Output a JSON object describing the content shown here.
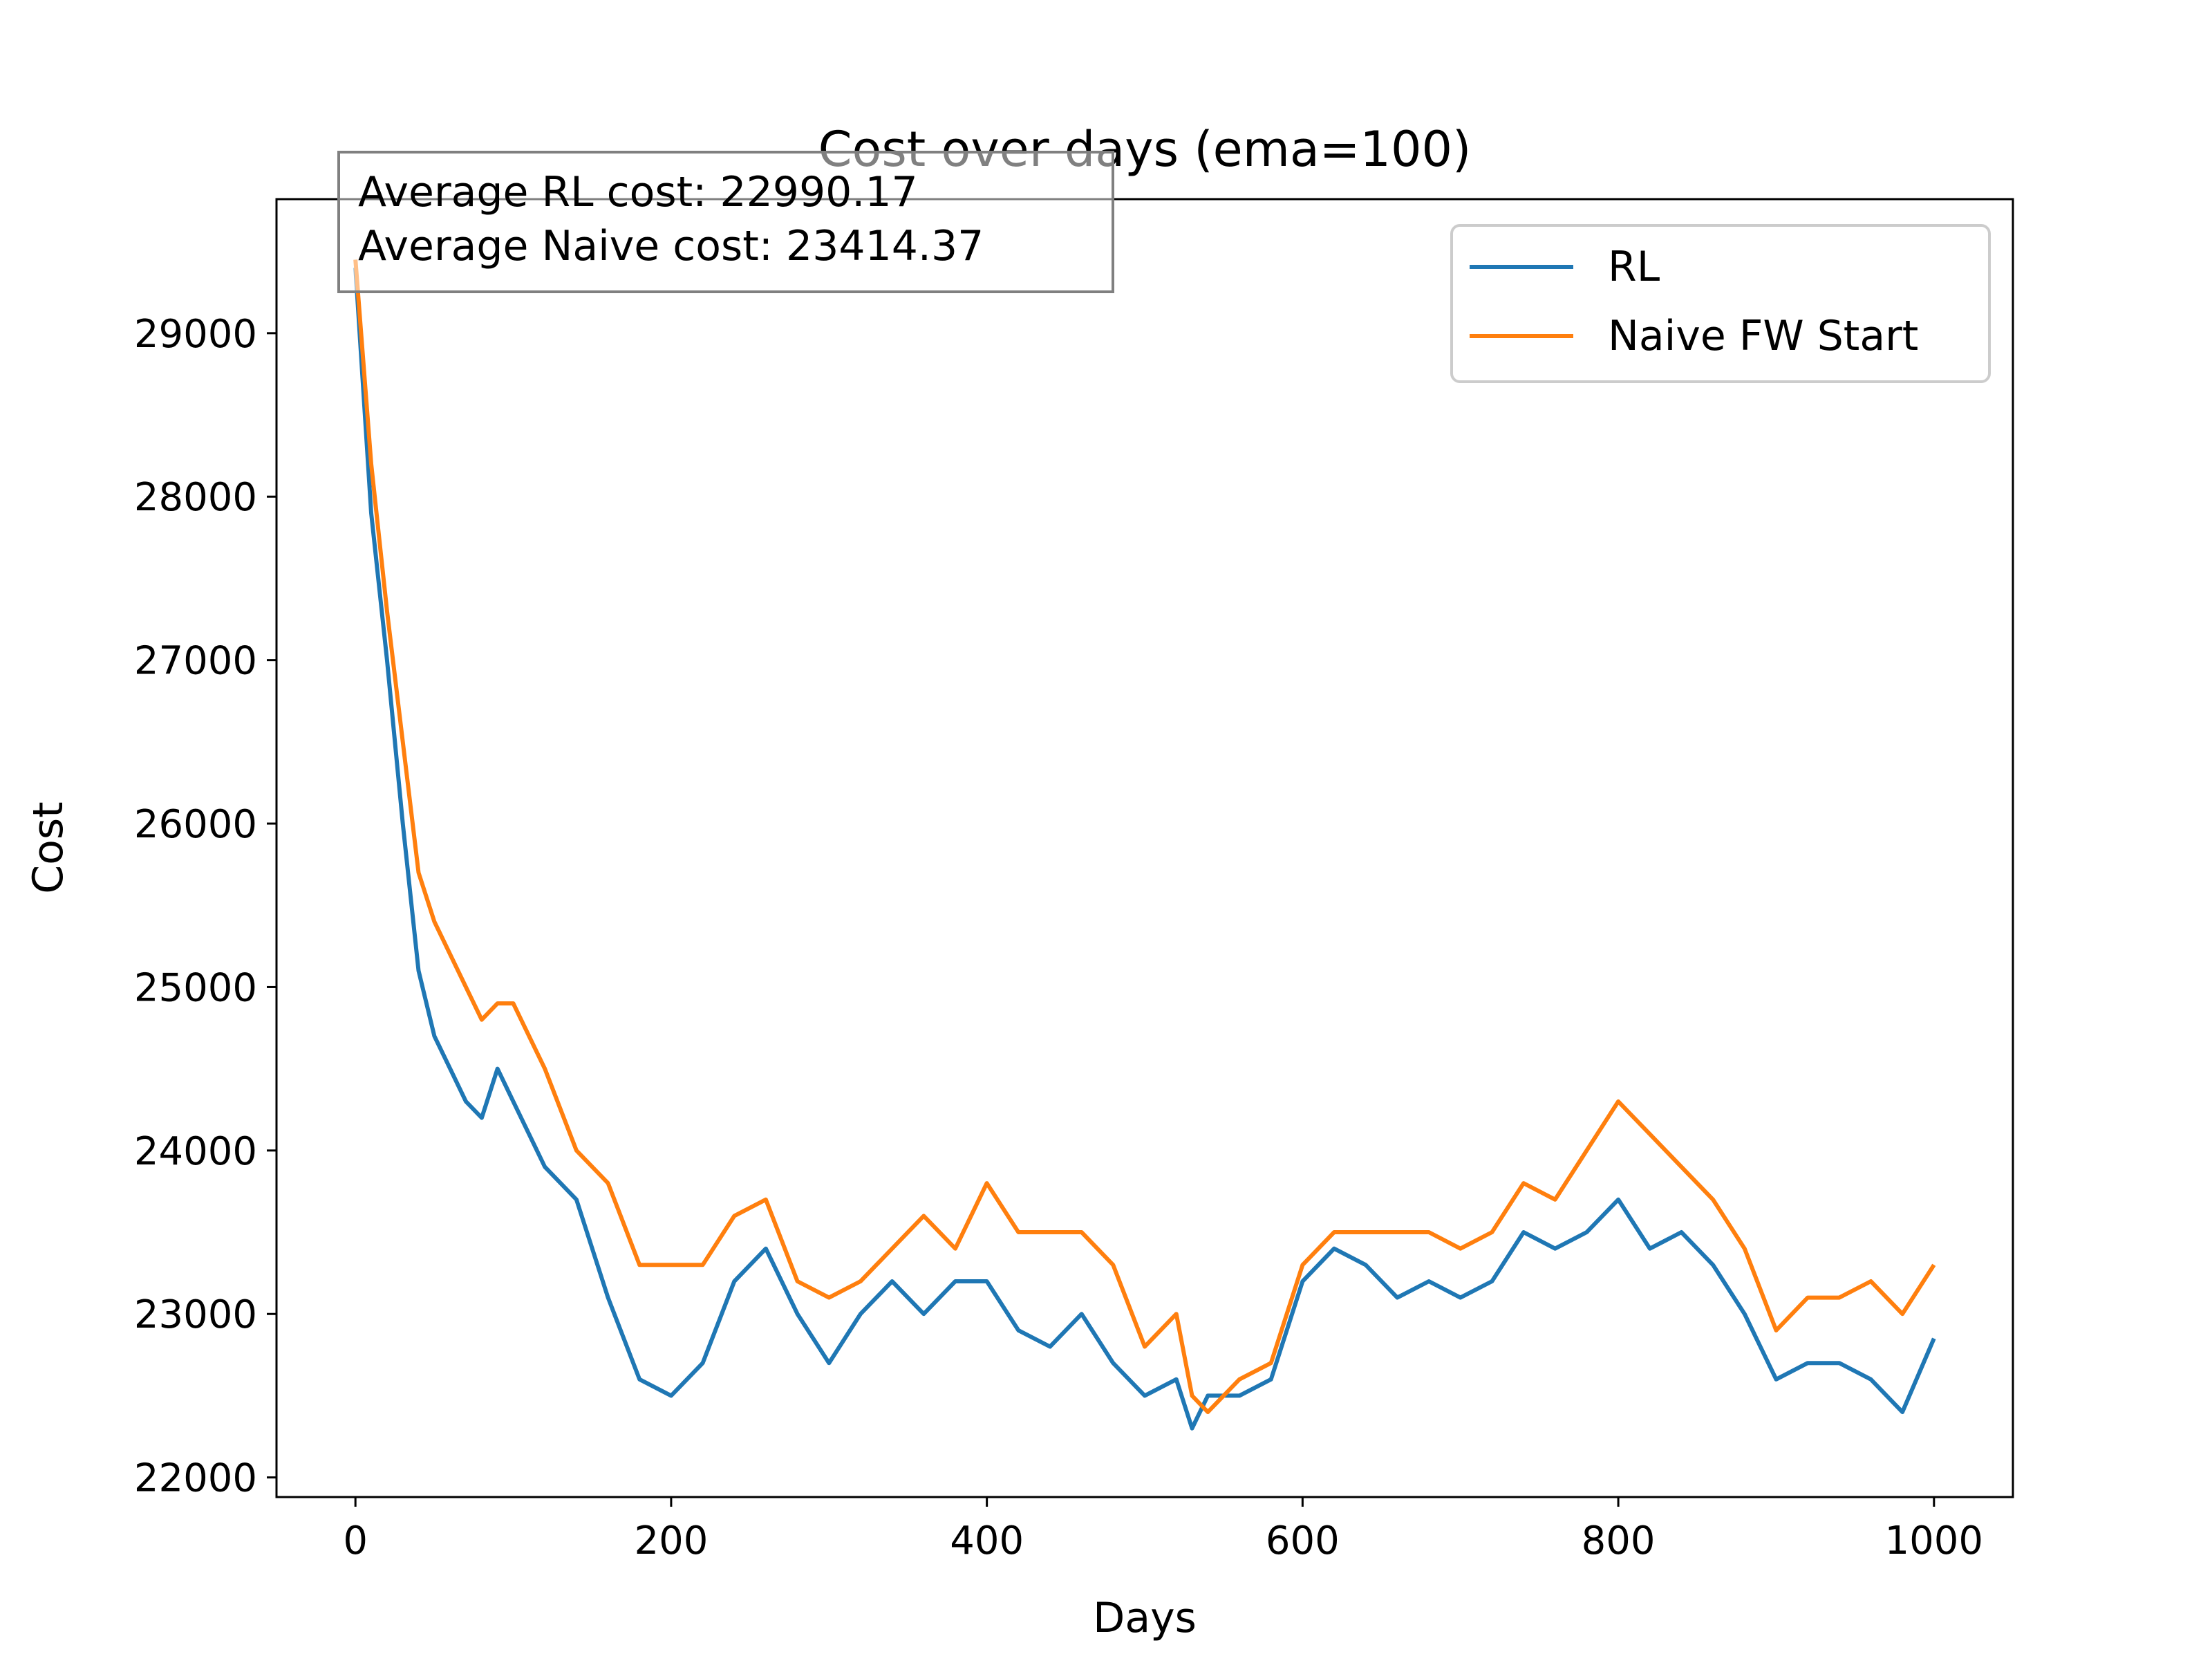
{
  "chart_data": {
    "type": "line",
    "title": "Cost over days (ema=100)",
    "xlabel": "Days",
    "ylabel": "Cost",
    "xlim": [
      -50,
      1050
    ],
    "ylim": [
      21880,
      29820
    ],
    "xticks": [
      0,
      200,
      400,
      600,
      800,
      1000
    ],
    "yticks": [
      22000,
      23000,
      24000,
      25000,
      26000,
      27000,
      28000,
      29000
    ],
    "grid": false,
    "legend_position": "top-right",
    "annotation": {
      "lines": [
        "Average RL cost: 22990.17",
        "Average Naive cost: 23414.37"
      ]
    },
    "series": [
      {
        "name": "RL",
        "color": "#1f77b4",
        "x": [
          0,
          10,
          20,
          30,
          40,
          50,
          60,
          70,
          80,
          90,
          100,
          120,
          140,
          160,
          180,
          200,
          220,
          240,
          260,
          280,
          300,
          320,
          340,
          360,
          380,
          400,
          420,
          440,
          460,
          480,
          500,
          520,
          530,
          540,
          560,
          580,
          600,
          620,
          640,
          660,
          680,
          700,
          720,
          740,
          760,
          780,
          800,
          820,
          840,
          860,
          880,
          900,
          920,
          940,
          960,
          980,
          1000
        ],
        "y": [
          29400,
          27900,
          27000,
          26000,
          25100,
          24700,
          24500,
          24300,
          24200,
          24500,
          24300,
          23900,
          23700,
          23100,
          22600,
          22500,
          22700,
          23200,
          23400,
          23000,
          22700,
          23000,
          23200,
          23000,
          23200,
          23200,
          22900,
          22800,
          23000,
          22700,
          22500,
          22600,
          22300,
          22500,
          22500,
          22600,
          23200,
          23400,
          23300,
          23100,
          23200,
          23100,
          23200,
          23500,
          23400,
          23500,
          23700,
          23400,
          23500,
          23300,
          23000,
          22600,
          22700,
          22700,
          22600,
          22400,
          22850
        ]
      },
      {
        "name": "Naive FW Start",
        "color": "#ff7f0e",
        "x": [
          0,
          10,
          20,
          30,
          40,
          50,
          60,
          70,
          80,
          90,
          100,
          120,
          140,
          160,
          180,
          200,
          220,
          240,
          260,
          280,
          300,
          320,
          340,
          360,
          380,
          400,
          420,
          440,
          460,
          480,
          500,
          520,
          530,
          540,
          560,
          580,
          600,
          620,
          640,
          660,
          680,
          700,
          720,
          740,
          760,
          780,
          800,
          820,
          840,
          860,
          880,
          900,
          920,
          940,
          960,
          980,
          1000
        ],
        "y": [
          29450,
          28200,
          27300,
          26500,
          25700,
          25400,
          25200,
          25000,
          24800,
          24900,
          24900,
          24500,
          24000,
          23800,
          23300,
          23300,
          23300,
          23600,
          23700,
          23200,
          23100,
          23200,
          23400,
          23600,
          23400,
          23800,
          23500,
          23500,
          23500,
          23300,
          22800,
          23000,
          22500,
          22400,
          22600,
          22700,
          23300,
          23500,
          23500,
          23500,
          23500,
          23400,
          23500,
          23800,
          23700,
          24000,
          24300,
          24100,
          23900,
          23700,
          23400,
          22900,
          23100,
          23100,
          23200,
          23000,
          23300
        ]
      }
    ]
  }
}
